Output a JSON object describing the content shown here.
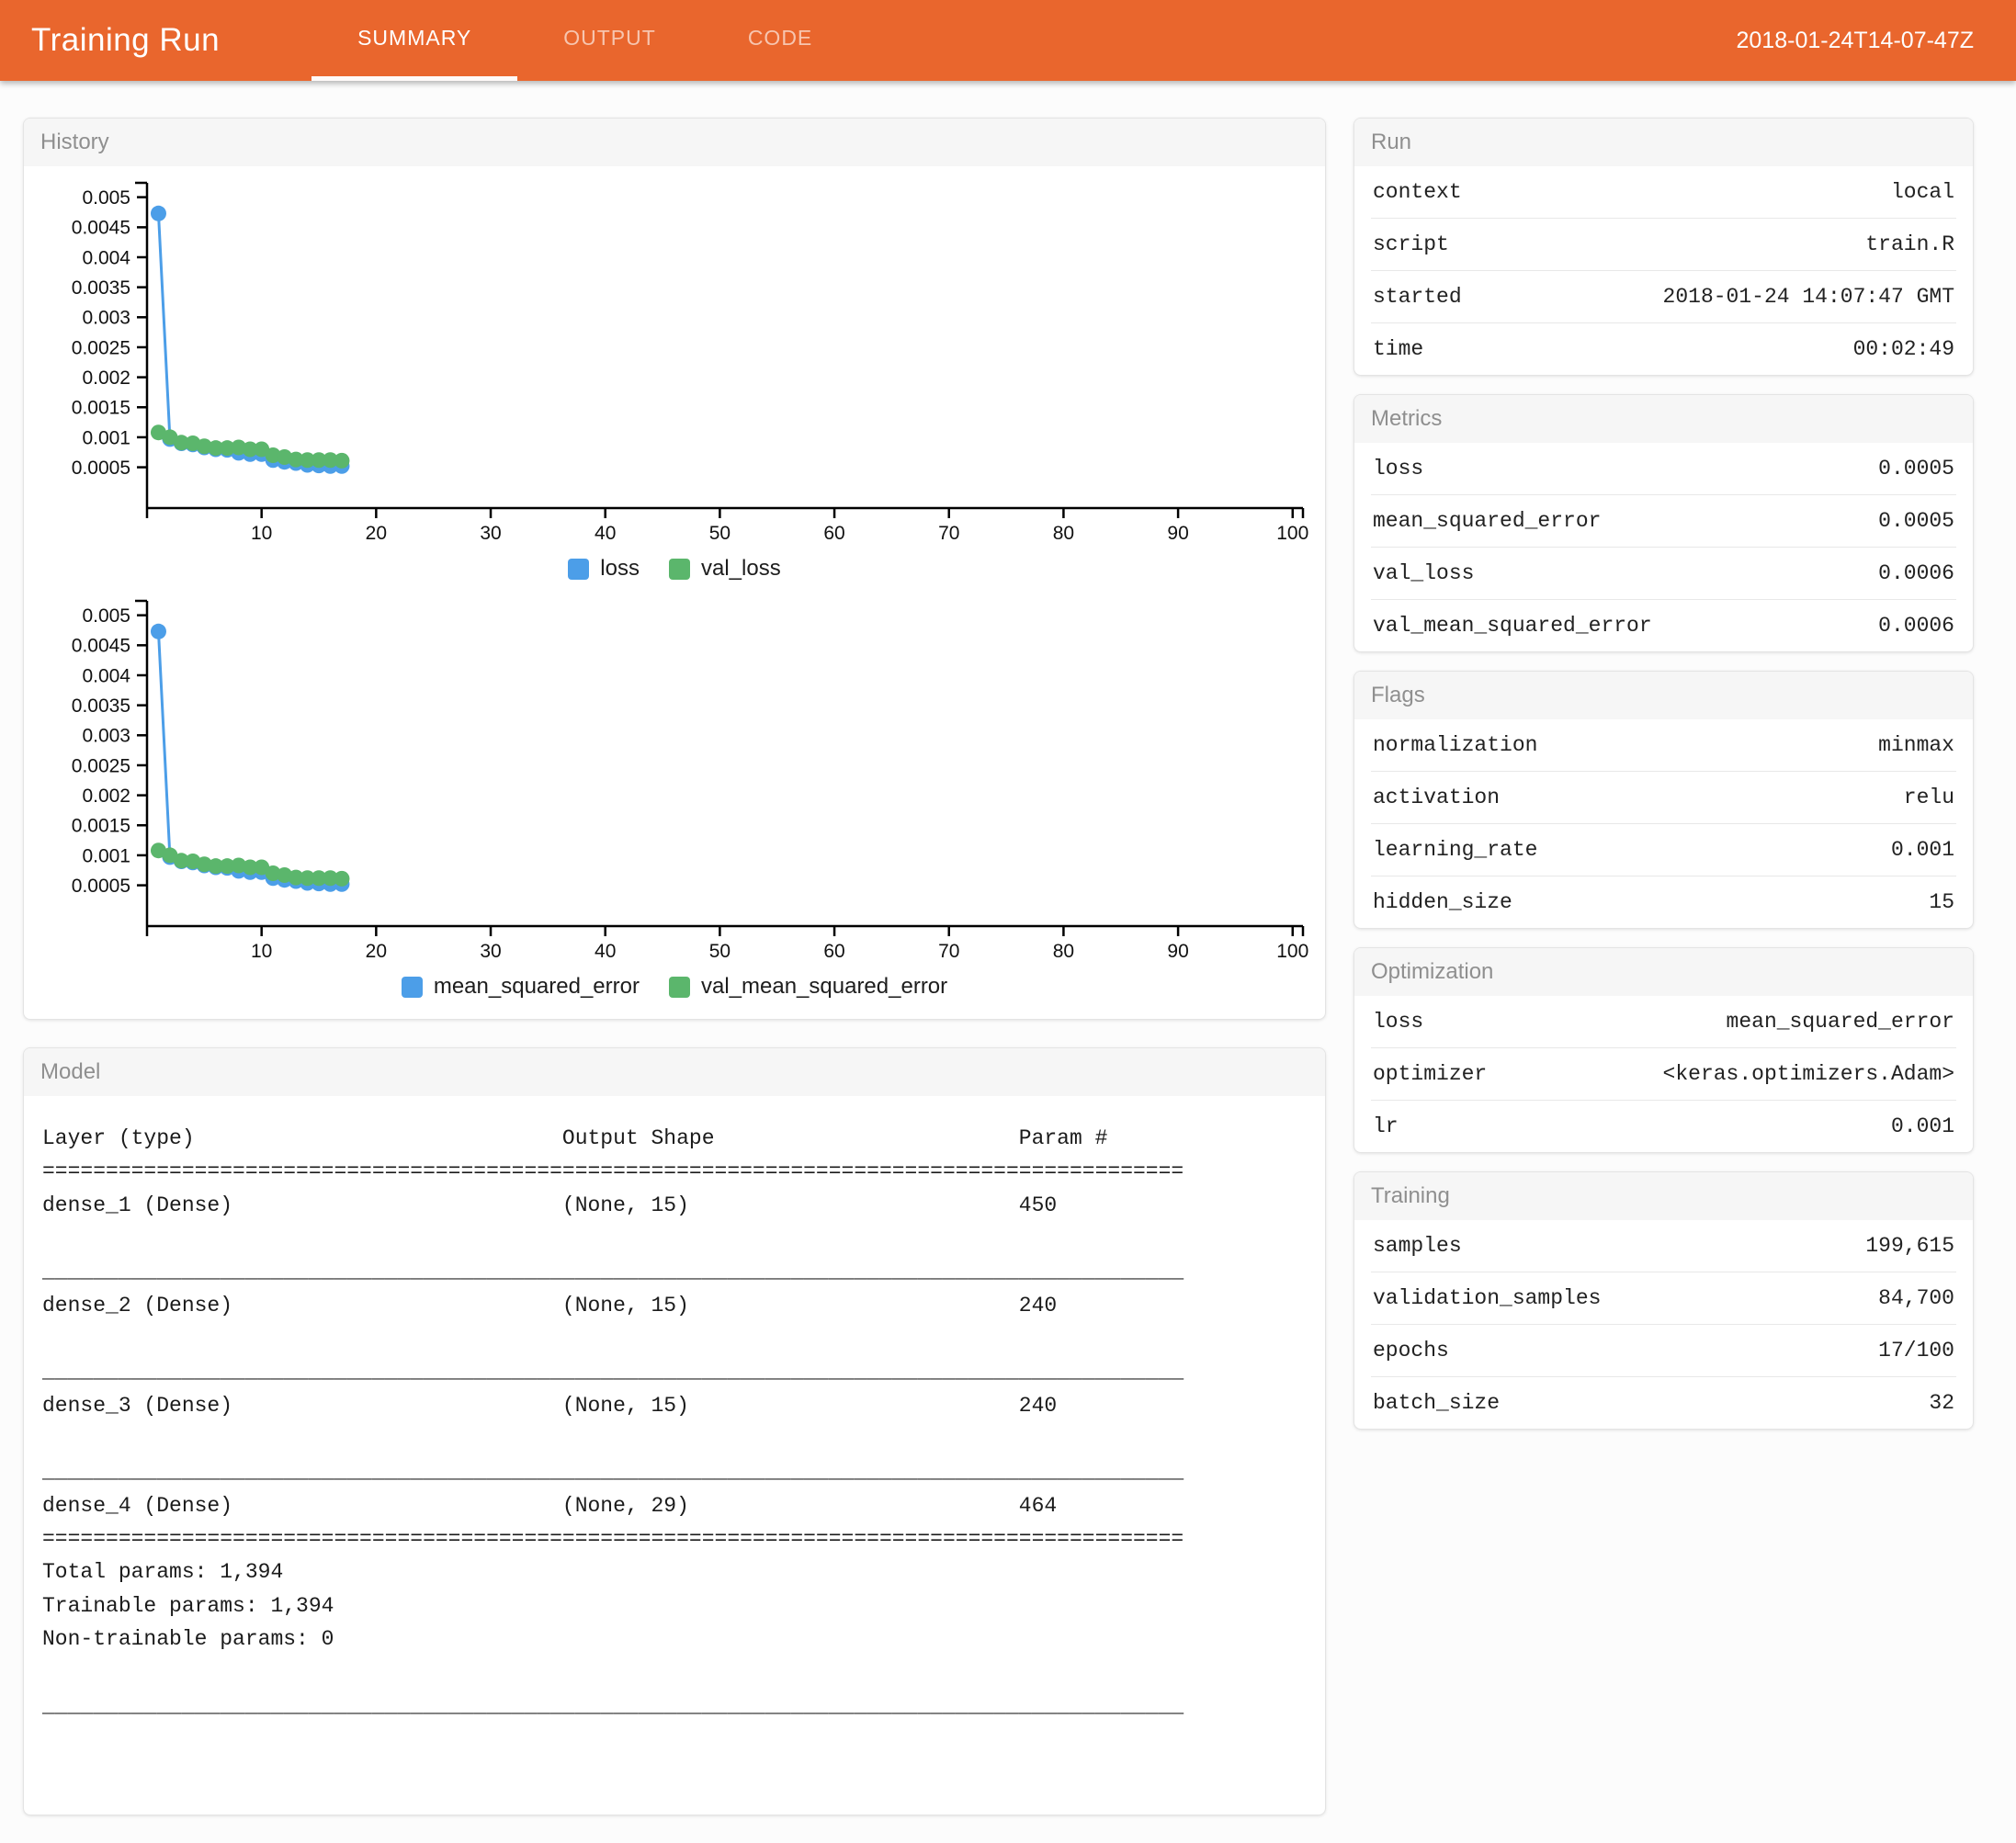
{
  "header": {
    "title": "Training Run",
    "tabs": [
      {
        "label": "SUMMARY",
        "active": true
      },
      {
        "label": "OUTPUT",
        "active": false
      },
      {
        "label": "CODE",
        "active": false
      }
    ],
    "timestamp": "2018-01-24T14-07-47Z"
  },
  "colors": {
    "header_bg": "#E9662D",
    "series_blue": "#4C9EE8",
    "series_green": "#5BB66C"
  },
  "panels": {
    "history": {
      "title": "History"
    },
    "model": {
      "title": "Model",
      "columns": [
        "Layer (type)",
        "Output Shape",
        "Param #"
      ],
      "rows": [
        [
          "dense_1 (Dense)",
          "(None, 15)",
          "450"
        ],
        [
          "dense_2 (Dense)",
          "(None, 15)",
          "240"
        ],
        [
          "dense_3 (Dense)",
          "(None, 15)",
          "240"
        ],
        [
          "dense_4 (Dense)",
          "(None, 29)",
          "464"
        ]
      ],
      "totals": [
        "Total params: 1,394",
        "Trainable params: 1,394",
        "Non-trainable params: 0"
      ]
    },
    "run": {
      "title": "Run",
      "rows": [
        {
          "key": "context",
          "value": "local"
        },
        {
          "key": "script",
          "value": "train.R"
        },
        {
          "key": "started",
          "value": "2018-01-24 14:07:47 GMT"
        },
        {
          "key": "time",
          "value": "00:02:49"
        }
      ]
    },
    "metrics": {
      "title": "Metrics",
      "rows": [
        {
          "key": "loss",
          "value": "0.0005"
        },
        {
          "key": "mean_squared_error",
          "value": "0.0005"
        },
        {
          "key": "val_loss",
          "value": "0.0006"
        },
        {
          "key": "val_mean_squared_error",
          "value": "0.0006"
        }
      ]
    },
    "flags": {
      "title": "Flags",
      "rows": [
        {
          "key": "normalization",
          "value": "minmax"
        },
        {
          "key": "activation",
          "value": "relu"
        },
        {
          "key": "learning_rate",
          "value": "0.001"
        },
        {
          "key": "hidden_size",
          "value": "15"
        }
      ]
    },
    "optimization": {
      "title": "Optimization",
      "rows": [
        {
          "key": "loss",
          "value": "mean_squared_error"
        },
        {
          "key": "optimizer",
          "value": "<keras.optimizers.Adam>"
        },
        {
          "key": "lr",
          "value": "0.001"
        }
      ]
    },
    "training": {
      "title": "Training",
      "rows": [
        {
          "key": "samples",
          "value": "199,615"
        },
        {
          "key": "validation_samples",
          "value": "84,700"
        },
        {
          "key": "epochs",
          "value": "17/100"
        },
        {
          "key": "batch_size",
          "value": "32"
        }
      ]
    }
  },
  "chart_data": [
    {
      "type": "line",
      "x": [
        1,
        2,
        3,
        4,
        5,
        6,
        7,
        8,
        9,
        10,
        11,
        12,
        13,
        14,
        15,
        16,
        17
      ],
      "series": [
        {
          "name": "loss",
          "color": "#4C9EE8",
          "values": [
            0.00473,
            0.00097,
            0.0009,
            0.00088,
            0.00083,
            0.0008,
            0.00079,
            0.00074,
            0.00072,
            0.00072,
            0.00062,
            0.00059,
            0.00057,
            0.00054,
            0.00053,
            0.00052,
            0.00052
          ]
        },
        {
          "name": "val_loss",
          "color": "#5BB66C",
          "values": [
            0.00108,
            0.001,
            0.00091,
            0.0009,
            0.00085,
            0.00082,
            0.00082,
            0.00083,
            0.0008,
            0.0008,
            0.0007,
            0.00067,
            0.00063,
            0.00062,
            0.00062,
            0.00062,
            0.00061
          ]
        }
      ],
      "xlim": [
        0,
        100.9
      ],
      "ylim": [
        -0.00018,
        0.00524
      ],
      "xticks": [
        10,
        20,
        30,
        40,
        50,
        60,
        70,
        80,
        90,
        100
      ],
      "yticks": [
        0.0005,
        0.001,
        0.0015,
        0.002,
        0.0025,
        0.003,
        0.0035,
        0.004,
        0.0045,
        0.005
      ],
      "grid": false,
      "legend_position": "bottom"
    },
    {
      "type": "line",
      "x": [
        1,
        2,
        3,
        4,
        5,
        6,
        7,
        8,
        9,
        10,
        11,
        12,
        13,
        14,
        15,
        16,
        17
      ],
      "series": [
        {
          "name": "mean_squared_error",
          "color": "#4C9EE8",
          "values": [
            0.00473,
            0.00097,
            0.0009,
            0.00088,
            0.00083,
            0.0008,
            0.00079,
            0.00074,
            0.00072,
            0.00072,
            0.00062,
            0.00059,
            0.00057,
            0.00054,
            0.00053,
            0.00052,
            0.00052
          ]
        },
        {
          "name": "val_mean_squared_error",
          "color": "#5BB66C",
          "values": [
            0.00108,
            0.001,
            0.00091,
            0.0009,
            0.00085,
            0.00082,
            0.00082,
            0.00083,
            0.0008,
            0.0008,
            0.0007,
            0.00067,
            0.00063,
            0.00062,
            0.00062,
            0.00062,
            0.00061
          ]
        }
      ],
      "xlim": [
        0,
        100.9
      ],
      "ylim": [
        -0.00018,
        0.00524
      ],
      "xticks": [
        10,
        20,
        30,
        40,
        50,
        60,
        70,
        80,
        90,
        100
      ],
      "yticks": [
        0.0005,
        0.001,
        0.0015,
        0.002,
        0.0025,
        0.003,
        0.0035,
        0.004,
        0.0045,
        0.005
      ],
      "grid": false,
      "legend_position": "bottom"
    }
  ]
}
